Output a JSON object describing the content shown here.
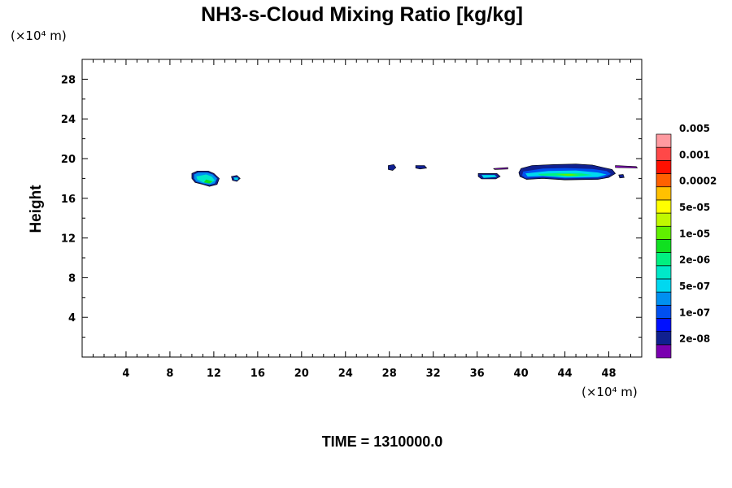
{
  "chart_data": {
    "type": "heatmap",
    "title": "NH3-s-Cloud Mixing Ratio [kg/kg]",
    "ylabel": "Height",
    "x_unit_label": "(×10⁴ m)",
    "y_unit_label": "(×10⁴ m)",
    "xlim": [
      0,
      51
    ],
    "ylim": [
      0,
      30
    ],
    "x_ticks": [
      4,
      8,
      12,
      16,
      20,
      24,
      28,
      32,
      36,
      40,
      44,
      48
    ],
    "y_ticks": [
      4,
      8,
      12,
      16,
      20,
      24,
      28
    ],
    "time_label": "TIME = 1310000.0",
    "colorbar": {
      "colors": [
        "#7a00b0",
        "#102090",
        "#0010ff",
        "#0050f0",
        "#0090f0",
        "#00d8f0",
        "#00e8c8",
        "#00f080",
        "#10e020",
        "#60f000",
        "#c0f800",
        "#ffff00",
        "#ffc000",
        "#ff6000",
        "#ff1000",
        "#ff4848",
        "#ff9aa0"
      ],
      "labels": [
        "2e-08",
        "1e-07",
        "5e-07",
        "2e-06",
        "1e-05",
        "5e-05",
        "0.0002",
        "0.001",
        "0.005"
      ]
    },
    "regions": [
      {
        "level": 1,
        "points": [
          [
            10.0,
            18.5
          ],
          [
            10.5,
            18.75
          ],
          [
            11.5,
            18.75
          ],
          [
            12.0,
            18.5
          ],
          [
            12.5,
            18.0
          ],
          [
            12.3,
            17.4
          ],
          [
            11.6,
            17.2
          ],
          [
            11.0,
            17.4
          ],
          [
            10.3,
            17.6
          ],
          [
            10.0,
            18.0
          ]
        ]
      },
      {
        "level": 4,
        "points": [
          [
            10.2,
            18.4
          ],
          [
            10.6,
            18.6
          ],
          [
            11.4,
            18.6
          ],
          [
            11.9,
            18.4
          ],
          [
            12.3,
            18.0
          ],
          [
            12.1,
            17.5
          ],
          [
            11.6,
            17.35
          ],
          [
            11.0,
            17.5
          ],
          [
            10.4,
            17.7
          ],
          [
            10.2,
            18.0
          ]
        ]
      },
      {
        "level": 6,
        "points": [
          [
            10.4,
            18.2
          ],
          [
            11.3,
            18.4
          ],
          [
            11.8,
            18.2
          ],
          [
            12.1,
            17.8
          ],
          [
            11.7,
            17.5
          ],
          [
            11.0,
            17.6
          ],
          [
            10.5,
            17.9
          ]
        ]
      },
      {
        "level": 8,
        "points": [
          [
            11.3,
            17.9
          ],
          [
            11.9,
            17.7
          ],
          [
            11.6,
            17.5
          ],
          [
            11.1,
            17.6
          ]
        ]
      },
      {
        "level": 1,
        "points": [
          [
            13.6,
            18.2
          ],
          [
            14.1,
            18.3
          ],
          [
            14.4,
            18.0
          ],
          [
            14.1,
            17.7
          ],
          [
            13.7,
            17.8
          ]
        ]
      },
      {
        "level": 5,
        "points": [
          [
            13.8,
            18.1
          ],
          [
            14.2,
            18.1
          ],
          [
            14.2,
            17.85
          ],
          [
            13.9,
            17.85
          ]
        ]
      },
      {
        "level": 1,
        "points": [
          [
            27.9,
            19.3
          ],
          [
            28.4,
            19.4
          ],
          [
            28.6,
            19.1
          ],
          [
            28.3,
            18.8
          ],
          [
            27.9,
            18.9
          ]
        ]
      },
      {
        "level": 1,
        "points": [
          [
            30.4,
            19.3
          ],
          [
            31.2,
            19.3
          ],
          [
            31.4,
            19.05
          ],
          [
            30.8,
            18.95
          ],
          [
            30.4,
            19.05
          ]
        ]
      },
      {
        "level": 1,
        "points": [
          [
            36.1,
            18.5
          ],
          [
            37.8,
            18.5
          ],
          [
            38.1,
            18.2
          ],
          [
            37.7,
            17.95
          ],
          [
            36.4,
            17.95
          ],
          [
            36.1,
            18.2
          ]
        ]
      },
      {
        "level": 5,
        "points": [
          [
            36.4,
            18.35
          ],
          [
            37.6,
            18.35
          ],
          [
            37.8,
            18.15
          ],
          [
            36.6,
            18.05
          ]
        ]
      },
      {
        "level": 1,
        "points": [
          [
            40.0,
            19.0
          ],
          [
            41.0,
            19.3
          ],
          [
            43.0,
            19.4
          ],
          [
            45.0,
            19.45
          ],
          [
            46.5,
            19.35
          ],
          [
            47.5,
            19.1
          ],
          [
            48.3,
            18.9
          ],
          [
            48.6,
            18.5
          ],
          [
            48.0,
            18.1
          ],
          [
            47.0,
            17.9
          ],
          [
            44.0,
            17.85
          ],
          [
            42.0,
            18.0
          ],
          [
            40.5,
            17.9
          ],
          [
            39.9,
            18.2
          ],
          [
            39.8,
            18.6
          ]
        ]
      },
      {
        "level": 3,
        "points": [
          [
            40.2,
            18.7
          ],
          [
            42.0,
            19.0
          ],
          [
            44.0,
            19.05
          ],
          [
            46.5,
            18.95
          ],
          [
            47.8,
            18.75
          ],
          [
            48.2,
            18.45
          ],
          [
            47.5,
            18.1
          ],
          [
            44.0,
            18.0
          ],
          [
            42.0,
            18.15
          ],
          [
            40.4,
            18.05
          ],
          [
            40.1,
            18.3
          ]
        ]
      },
      {
        "level": 5,
        "points": [
          [
            40.4,
            18.5
          ],
          [
            42.5,
            18.75
          ],
          [
            45.0,
            18.8
          ],
          [
            47.0,
            18.6
          ],
          [
            47.8,
            18.4
          ],
          [
            47.0,
            18.15
          ],
          [
            44.0,
            18.1
          ],
          [
            42.0,
            18.25
          ],
          [
            40.6,
            18.2
          ]
        ]
      },
      {
        "level": 7,
        "points": [
          [
            41.5,
            18.45
          ],
          [
            43.5,
            18.55
          ],
          [
            45.5,
            18.5
          ],
          [
            46.5,
            18.35
          ],
          [
            45.0,
            18.2
          ],
          [
            43.0,
            18.25
          ],
          [
            41.8,
            18.3
          ]
        ]
      },
      {
        "level": 9,
        "points": [
          [
            43.2,
            18.4
          ],
          [
            44.5,
            18.45
          ],
          [
            45.3,
            18.35
          ],
          [
            44.3,
            18.25
          ]
        ]
      },
      {
        "level": 1,
        "points": [
          [
            48.9,
            18.35
          ],
          [
            49.3,
            18.4
          ],
          [
            49.4,
            18.1
          ],
          [
            49.0,
            18.05
          ]
        ]
      },
      {
        "level": 0,
        "points": [
          [
            37.5,
            19.0
          ],
          [
            38.8,
            19.1
          ],
          [
            38.8,
            18.95
          ],
          [
            37.6,
            18.9
          ]
        ]
      },
      {
        "level": 0,
        "points": [
          [
            48.6,
            19.3
          ],
          [
            50.5,
            19.2
          ],
          [
            50.6,
            19.05
          ],
          [
            48.6,
            19.1
          ]
        ]
      }
    ]
  }
}
